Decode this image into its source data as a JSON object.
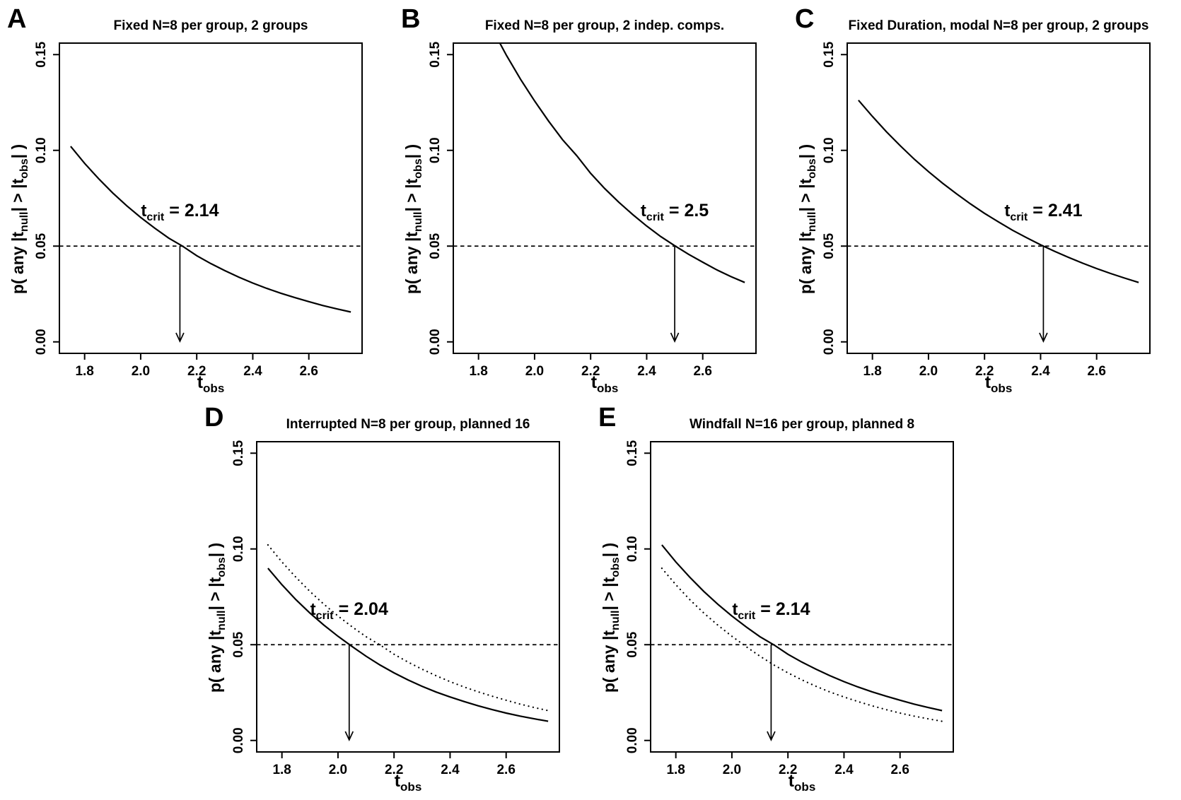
{
  "chart_data": {
    "type": "line",
    "description_title": "",
    "alpha_reference": 0.05,
    "xlim": [
      1.71,
      2.79
    ],
    "ylim": [
      -0.006,
      0.156
    ],
    "x_ticks": [
      "1.8",
      "2.0",
      "2.2",
      "2.4",
      "2.6"
    ],
    "y_ticks": [
      "0.00",
      "0.05",
      "0.10",
      "0.15"
    ],
    "x_label": {
      "base": "t",
      "sub": "obs"
    },
    "y_label_segments": [
      {
        "text": "p( any |t",
        "sub": false
      },
      {
        "text": "null",
        "sub": true
      },
      {
        "text": "| > |t",
        "sub": false
      },
      {
        "text": "obs",
        "sub": true
      },
      {
        "text": "| )",
        "sub": false
      }
    ],
    "x": [
      1.75,
      1.8,
      1.85,
      1.9,
      1.95,
      2.0,
      2.05,
      2.1,
      2.15,
      2.2,
      2.25,
      2.3,
      2.35,
      2.4,
      2.45,
      2.5,
      2.55,
      2.6,
      2.65,
      2.7,
      2.75
    ],
    "curves": {
      "t14": [
        0.1021,
        0.0932,
        0.0852,
        0.0778,
        0.0711,
        0.065,
        0.0594,
        0.0542,
        0.0499,
        0.045,
        0.0409,
        0.0372,
        0.0338,
        0.0307,
        0.0279,
        0.0254,
        0.0231,
        0.021,
        0.019,
        0.0172,
        0.0156
      ],
      "t30": [
        0.0899,
        0.0813,
        0.0735,
        0.0665,
        0.0602,
        0.0544,
        0.0491,
        0.044,
        0.0394,
        0.0353,
        0.0316,
        0.0283,
        0.0253,
        0.0227,
        0.0203,
        0.0181,
        0.0161,
        0.0143,
        0.0127,
        0.0113,
        0.01
      ],
      "two_indep": [
        0.1938,
        0.1777,
        0.1631,
        0.1495,
        0.1371,
        0.1258,
        0.1153,
        0.1055,
        0.0973,
        0.088,
        0.0801,
        0.073,
        0.0665,
        0.0605,
        0.055,
        0.0502,
        0.0457,
        0.0416,
        0.0376,
        0.0341,
        0.031
      ],
      "fixed_duration": [
        0.1262,
        0.1177,
        0.1097,
        0.1023,
        0.0953,
        0.0889,
        0.0829,
        0.0773,
        0.072,
        0.0671,
        0.0626,
        0.0583,
        0.0544,
        0.0507,
        0.0473,
        0.0441,
        0.0411,
        0.0383,
        0.0357,
        0.0333,
        0.031
      ]
    },
    "panels": [
      {
        "letter": "A",
        "title": "Fixed N=8 per group, 2 groups",
        "tcrit": 2.14,
        "tcrit_text": {
          "base": "t",
          "sub": "crit",
          "eq": "=",
          "value": "2.14"
        },
        "series": [
          {
            "style": "solid",
            "curve": "t14"
          }
        ]
      },
      {
        "letter": "B",
        "title": "Fixed N=8 per group, 2 indep. comps.",
        "tcrit": 2.5,
        "tcrit_text": {
          "base": "t",
          "sub": "crit",
          "eq": "=",
          "value": "2.5"
        },
        "series": [
          {
            "style": "solid",
            "curve": "two_indep"
          }
        ]
      },
      {
        "letter": "C",
        "title": "Fixed Duration, modal N=8 per group, 2 groups",
        "tcrit": 2.41,
        "tcrit_text": {
          "base": "t",
          "sub": "crit",
          "eq": "=",
          "value": "2.41"
        },
        "series": [
          {
            "style": "solid",
            "curve": "fixed_duration"
          }
        ]
      },
      {
        "letter": "D",
        "title": "Interrupted N=8 per group, planned 16",
        "tcrit": 2.04,
        "tcrit_text": {
          "base": "t",
          "sub": "crit",
          "eq": "=",
          "value": "2.04"
        },
        "series": [
          {
            "style": "solid",
            "curve": "t30"
          },
          {
            "style": "dotted",
            "curve": "t14"
          }
        ]
      },
      {
        "letter": "E",
        "title": "Windfall N=16 per group, planned 8",
        "tcrit": 2.14,
        "tcrit_text": {
          "base": "t",
          "sub": "crit",
          "eq": "=",
          "value": "2.14"
        },
        "series": [
          {
            "style": "solid",
            "curve": "t14"
          },
          {
            "style": "dotted",
            "curve": "t30"
          }
        ]
      }
    ],
    "colors": {
      "ink": "#000000",
      "background": "#ffffff"
    }
  }
}
